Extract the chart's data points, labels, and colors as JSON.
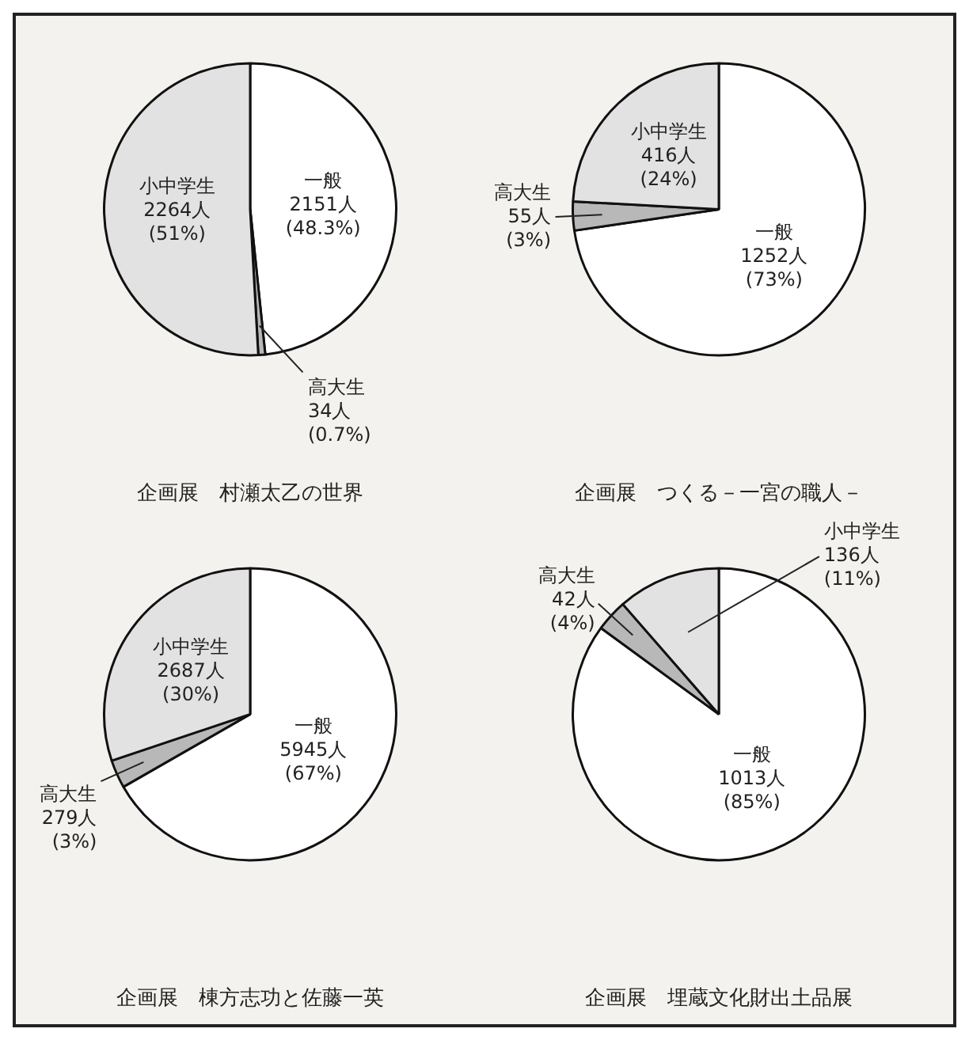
{
  "chart_data": [
    {
      "type": "pie",
      "title": "企画展　村瀬太乙の世界",
      "categories": [
        "一般",
        "高大生",
        "小中学生"
      ],
      "values": [
        2151,
        34,
        2264
      ],
      "colors": [
        "#ffffff",
        "#b8b8b8",
        "#e2e2e2"
      ],
      "value_labels": [
        "2151人\n(48.3%)",
        "34人\n(0.7%)",
        "2264人\n(51%)"
      ],
      "legend": false
    },
    {
      "type": "pie",
      "title": "企画展　つくる－一宮の職人－",
      "categories": [
        "一般",
        "高大生",
        "小中学生"
      ],
      "values": [
        1252,
        55,
        416
      ],
      "colors": [
        "#ffffff",
        "#b8b8b8",
        "#e2e2e2"
      ],
      "value_labels": [
        "1252人\n(73%)",
        "55人\n(3%)",
        "416人\n(24%)"
      ],
      "legend": false
    },
    {
      "type": "pie",
      "title": "企画展　棟方志功と佐藤一英",
      "categories": [
        "一般",
        "高大生",
        "小中学生"
      ],
      "values": [
        5945,
        279,
        2687
      ],
      "colors": [
        "#ffffff",
        "#b8b8b8",
        "#e2e2e2"
      ],
      "value_labels": [
        "5945人\n(67%)",
        "279人\n(3%)",
        "2687人\n(30%)"
      ],
      "legend": false
    },
    {
      "type": "pie",
      "title": "企画展　埋蔵文化財出土品展",
      "categories": [
        "一般",
        "高大生",
        "小中学生"
      ],
      "values": [
        1013,
        42,
        136
      ],
      "colors": [
        "#ffffff",
        "#b8b8b8",
        "#e2e2e2"
      ],
      "value_labels": [
        "1013人\n(85%)",
        "42人\n(4%)",
        "136人\n(11%)"
      ],
      "legend": false
    }
  ]
}
